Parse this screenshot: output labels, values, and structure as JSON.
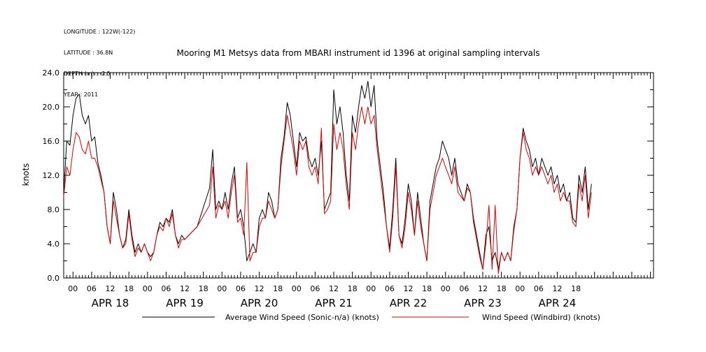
{
  "meta_lines": [
    "LONGITUDE : 122W(-122)",
    "LATITUDE : 36.8N",
    "DEPTH (m) : -2.5",
    "YEAR : 2011"
  ],
  "chart_data": {
    "type": "line",
    "title": "Mooring M1 Metsys data from MBARI instrument id 1396 at original sampling intervals",
    "ylabel": "knots",
    "xlabel": "",
    "ylim": [
      0,
      24
    ],
    "yticks": [
      "0.0",
      "4.0",
      "8.0",
      "12.0",
      "16.0",
      "20.0",
      "24.0"
    ],
    "xlim_hours": [
      -3,
      187
    ],
    "hour_tick_labels": [
      "00",
      "06",
      "12",
      "18",
      "00",
      "06",
      "12",
      "18",
      "00",
      "06",
      "12",
      "18",
      "00",
      "06",
      "12",
      "18",
      "00",
      "06",
      "12",
      "18",
      "00",
      "06",
      "12",
      "18",
      "00",
      "06",
      "12",
      "18"
    ],
    "day_labels": [
      "APR 18",
      "APR 19",
      "APR 20",
      "APR 21",
      "APR 22",
      "APR 23",
      "APR 24"
    ],
    "legend": "bottom",
    "series": [
      {
        "name": "Average Wind Speed (Sonic-n/a) (knots)",
        "color": "#000000",
        "points": [
          [
            -3,
            10
          ],
          [
            -2,
            16
          ],
          [
            -1,
            15.5
          ],
          [
            0,
            19
          ],
          [
            1,
            21
          ],
          [
            2,
            21.5
          ],
          [
            3,
            19
          ],
          [
            4,
            18
          ],
          [
            5,
            19
          ],
          [
            6,
            16
          ],
          [
            7,
            16.5
          ],
          [
            8,
            13.5
          ],
          [
            9,
            12
          ],
          [
            10,
            10
          ],
          [
            11,
            6
          ],
          [
            12,
            4
          ],
          [
            13,
            10
          ],
          [
            14,
            8
          ],
          [
            15,
            5
          ],
          [
            16,
            3.5
          ],
          [
            17,
            4.5
          ],
          [
            18,
            8
          ],
          [
            19,
            5
          ],
          [
            20,
            3
          ],
          [
            21,
            4
          ],
          [
            22,
            3
          ],
          [
            23,
            4
          ],
          [
            24,
            3
          ],
          [
            25,
            2.5
          ],
          [
            26,
            3
          ],
          [
            27,
            5
          ],
          [
            28,
            6.5
          ],
          [
            29,
            6
          ],
          [
            30,
            7
          ],
          [
            31,
            6.5
          ],
          [
            32,
            8
          ],
          [
            33,
            5
          ],
          [
            34,
            4
          ],
          [
            35,
            5
          ],
          [
            36,
            4.5
          ],
          [
            40,
            6
          ],
          [
            44,
            10.5
          ],
          [
            45,
            15
          ],
          [
            46,
            8
          ],
          [
            47,
            9
          ],
          [
            48,
            8
          ],
          [
            49,
            10
          ],
          [
            50,
            8
          ],
          [
            51,
            11
          ],
          [
            52,
            13
          ],
          [
            53,
            7
          ],
          [
            54,
            8
          ],
          [
            55,
            6
          ],
          [
            56,
            2
          ],
          [
            57,
            3
          ],
          [
            58,
            4
          ],
          [
            59,
            3
          ],
          [
            60,
            7
          ],
          [
            61,
            8
          ],
          [
            62,
            7
          ],
          [
            63,
            10
          ],
          [
            64,
            9
          ],
          [
            65,
            7
          ],
          [
            66,
            8
          ],
          [
            67,
            14
          ],
          [
            68,
            16.5
          ],
          [
            69,
            20.5
          ],
          [
            70,
            19
          ],
          [
            71,
            16
          ],
          [
            72,
            13
          ],
          [
            73,
            17
          ],
          [
            74,
            16
          ],
          [
            75,
            16.5
          ],
          [
            76,
            14
          ],
          [
            77,
            13
          ],
          [
            78,
            14
          ],
          [
            79,
            12
          ],
          [
            80,
            16
          ],
          [
            81,
            8
          ],
          [
            82,
            9
          ],
          [
            83,
            10
          ],
          [
            84,
            22
          ],
          [
            85,
            18
          ],
          [
            86,
            20
          ],
          [
            87,
            17
          ],
          [
            88,
            12
          ],
          [
            89,
            9
          ],
          [
            90,
            19
          ],
          [
            91,
            17
          ],
          [
            92,
            20
          ],
          [
            93,
            22.5
          ],
          [
            94,
            21
          ],
          [
            95,
            23
          ],
          [
            96,
            20
          ],
          [
            97,
            22.5
          ],
          [
            98,
            16
          ],
          [
            99,
            13
          ],
          [
            100,
            10
          ],
          [
            101,
            6
          ],
          [
            102,
            3.5
          ],
          [
            103,
            8
          ],
          [
            104,
            14
          ],
          [
            105,
            5
          ],
          [
            106,
            4
          ],
          [
            107,
            7
          ],
          [
            108,
            11
          ],
          [
            109,
            9
          ],
          [
            110,
            5
          ],
          [
            111,
            10
          ],
          [
            112,
            7
          ],
          [
            113,
            4
          ],
          [
            114,
            2
          ],
          [
            115,
            9
          ],
          [
            116,
            11
          ],
          [
            117,
            13
          ],
          [
            118,
            14
          ],
          [
            119,
            16
          ],
          [
            120,
            15
          ],
          [
            121,
            14
          ],
          [
            122,
            12
          ],
          [
            123,
            14
          ],
          [
            124,
            11
          ],
          [
            125,
            10
          ],
          [
            126,
            9
          ],
          [
            127,
            11
          ],
          [
            128,
            10
          ],
          [
            129,
            7
          ],
          [
            130,
            5
          ],
          [
            131,
            3
          ],
          [
            132,
            1
          ],
          [
            133,
            5
          ],
          [
            134,
            6
          ],
          [
            135,
            2
          ],
          [
            136,
            3
          ],
          [
            137,
            1
          ],
          [
            138,
            3
          ],
          [
            139,
            2
          ],
          [
            140,
            3
          ],
          [
            141,
            2
          ],
          [
            142,
            6
          ],
          [
            143,
            8
          ],
          [
            144,
            14
          ],
          [
            145,
            17.5
          ],
          [
            146,
            16
          ],
          [
            147,
            15
          ],
          [
            148,
            13
          ],
          [
            149,
            14
          ],
          [
            150,
            12
          ],
          [
            151,
            14
          ],
          [
            152,
            13
          ],
          [
            153,
            12
          ],
          [
            154,
            13
          ],
          [
            155,
            11
          ],
          [
            156,
            12
          ],
          [
            157,
            10
          ],
          [
            158,
            11
          ],
          [
            159,
            9
          ],
          [
            160,
            10
          ],
          [
            161,
            7
          ],
          [
            162,
            6.5
          ],
          [
            163,
            12
          ],
          [
            164,
            10
          ],
          [
            165,
            13
          ],
          [
            166,
            8
          ],
          [
            167,
            11
          ]
        ]
      },
      {
        "name": "Wind Speed (Windbird) (knots)",
        "color": "#dd0000",
        "points": [
          [
            -3,
            9.5
          ],
          [
            -2,
            13
          ],
          [
            -1,
            12
          ],
          [
            0,
            15
          ],
          [
            1,
            17
          ],
          [
            2,
            16.5
          ],
          [
            3,
            15
          ],
          [
            4,
            14.5
          ],
          [
            5,
            16
          ],
          [
            6,
            14
          ],
          [
            7,
            14
          ],
          [
            8,
            13
          ],
          [
            9,
            11.5
          ],
          [
            10,
            10
          ],
          [
            11,
            6
          ],
          [
            12,
            4
          ],
          [
            13,
            9
          ],
          [
            14,
            7
          ],
          [
            15,
            5
          ],
          [
            16,
            3.5
          ],
          [
            17,
            4
          ],
          [
            18,
            7.5
          ],
          [
            19,
            4.5
          ],
          [
            20,
            2.5
          ],
          [
            21,
            3.5
          ],
          [
            22,
            3
          ],
          [
            23,
            4
          ],
          [
            24,
            3
          ],
          [
            25,
            2
          ],
          [
            26,
            3
          ],
          [
            27,
            5
          ],
          [
            28,
            6
          ],
          [
            29,
            5.5
          ],
          [
            30,
            7
          ],
          [
            31,
            6
          ],
          [
            32,
            7.5
          ],
          [
            33,
            5
          ],
          [
            34,
            3.5
          ],
          [
            35,
            4.5
          ],
          [
            36,
            4.5
          ],
          [
            40,
            6
          ],
          [
            44,
            8.5
          ],
          [
            45,
            13
          ],
          [
            46,
            7
          ],
          [
            47,
            8.5
          ],
          [
            48,
            8
          ],
          [
            49,
            9
          ],
          [
            50,
            7
          ],
          [
            51,
            10
          ],
          [
            52,
            12
          ],
          [
            53,
            6.5
          ],
          [
            54,
            7
          ],
          [
            55,
            5
          ],
          [
            56,
            13.5
          ],
          [
            57,
            2
          ],
          [
            58,
            3
          ],
          [
            59,
            3
          ],
          [
            60,
            6
          ],
          [
            61,
            7
          ],
          [
            62,
            7
          ],
          [
            63,
            9
          ],
          [
            64,
            8
          ],
          [
            65,
            7
          ],
          [
            66,
            8
          ],
          [
            67,
            13
          ],
          [
            68,
            16
          ],
          [
            69,
            19
          ],
          [
            70,
            17
          ],
          [
            71,
            15
          ],
          [
            72,
            12
          ],
          [
            73,
            16
          ],
          [
            74,
            15
          ],
          [
            75,
            16
          ],
          [
            76,
            13
          ],
          [
            77,
            12
          ],
          [
            78,
            13
          ],
          [
            79,
            11
          ],
          [
            80,
            17.5
          ],
          [
            81,
            7.5
          ],
          [
            82,
            8
          ],
          [
            83,
            9
          ],
          [
            84,
            18
          ],
          [
            85,
            15
          ],
          [
            86,
            17
          ],
          [
            87,
            15
          ],
          [
            88,
            11
          ],
          [
            89,
            8
          ],
          [
            90,
            17
          ],
          [
            91,
            15
          ],
          [
            92,
            18
          ],
          [
            93,
            20
          ],
          [
            94,
            18
          ],
          [
            95,
            20
          ],
          [
            96,
            18
          ],
          [
            97,
            19
          ],
          [
            98,
            15
          ],
          [
            99,
            12
          ],
          [
            100,
            9
          ],
          [
            101,
            6
          ],
          [
            102,
            3
          ],
          [
            103,
            7
          ],
          [
            104,
            13
          ],
          [
            105,
            5
          ],
          [
            106,
            3.5
          ],
          [
            107,
            6
          ],
          [
            108,
            10
          ],
          [
            109,
            8
          ],
          [
            110,
            5
          ],
          [
            111,
            9
          ],
          [
            112,
            6
          ],
          [
            113,
            4
          ],
          [
            114,
            2
          ],
          [
            115,
            8
          ],
          [
            116,
            10
          ],
          [
            117,
            12
          ],
          [
            118,
            13
          ],
          [
            119,
            14
          ],
          [
            120,
            13
          ],
          [
            121,
            12
          ],
          [
            122,
            11
          ],
          [
            123,
            13
          ],
          [
            124,
            10
          ],
          [
            125,
            9.5
          ],
          [
            126,
            9
          ],
          [
            127,
            10.5
          ],
          [
            128,
            10
          ],
          [
            129,
            6.5
          ],
          [
            130,
            4.5
          ],
          [
            131,
            2.5
          ],
          [
            132,
            1
          ],
          [
            133,
            4
          ],
          [
            134,
            8.5
          ],
          [
            135,
            1
          ],
          [
            136,
            8.5
          ],
          [
            137,
            0.5
          ],
          [
            138,
            3
          ],
          [
            139,
            2
          ],
          [
            140,
            3
          ],
          [
            141,
            2
          ],
          [
            142,
            5.5
          ],
          [
            143,
            8
          ],
          [
            144,
            14
          ],
          [
            145,
            17
          ],
          [
            146,
            15
          ],
          [
            147,
            14
          ],
          [
            148,
            12
          ],
          [
            149,
            13
          ],
          [
            150,
            12
          ],
          [
            151,
            13
          ],
          [
            152,
            12
          ],
          [
            153,
            11
          ],
          [
            154,
            12
          ],
          [
            155,
            10
          ],
          [
            156,
            11
          ],
          [
            157,
            9
          ],
          [
            158,
            10
          ],
          [
            159,
            9
          ],
          [
            160,
            9
          ],
          [
            161,
            6.5
          ],
          [
            162,
            6
          ],
          [
            163,
            11
          ],
          [
            164,
            9
          ],
          [
            165,
            12
          ],
          [
            166,
            7
          ],
          [
            167,
            10
          ]
        ]
      }
    ]
  }
}
